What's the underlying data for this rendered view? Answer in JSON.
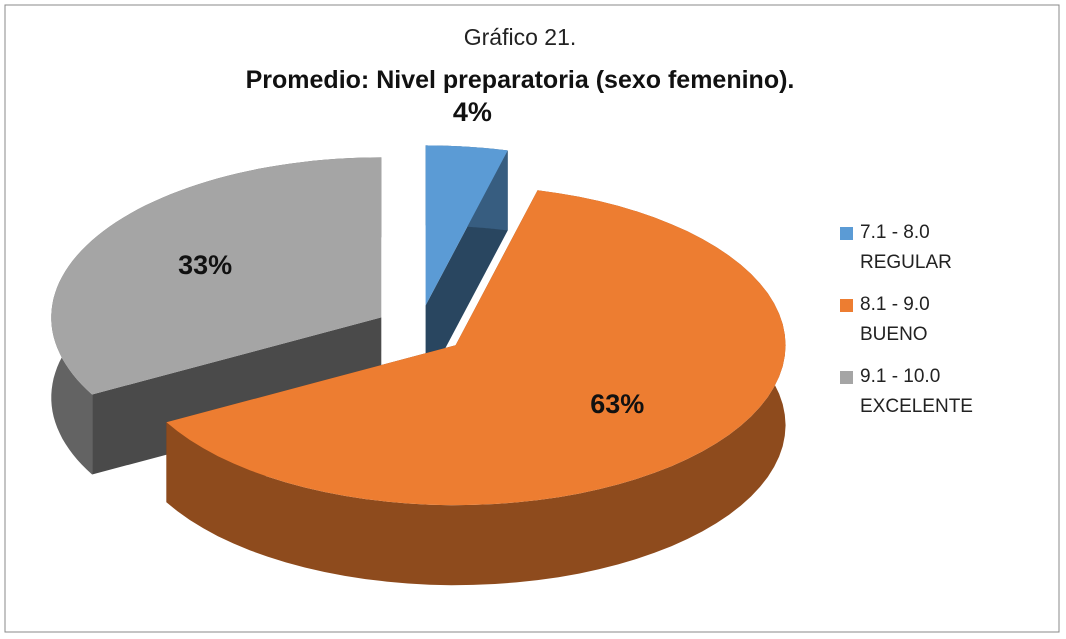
{
  "chart_data": {
    "type": "pie3d",
    "title": "Gráfico 21.",
    "subtitle": "Promedio: Nivel preparatoria (sexo femenino).",
    "categories": [
      "7.1 - 8.0 REGULAR",
      "8.1 - 9.0 BUENO",
      "9.1 - 10.0 EXCELENTE"
    ],
    "values": [
      4,
      63,
      33
    ],
    "value_labels": [
      "4%",
      "63%",
      "33%"
    ],
    "colors": [
      "#5b9bd5",
      "#ed7d31",
      "#a5a5a5"
    ],
    "legend": "right"
  }
}
